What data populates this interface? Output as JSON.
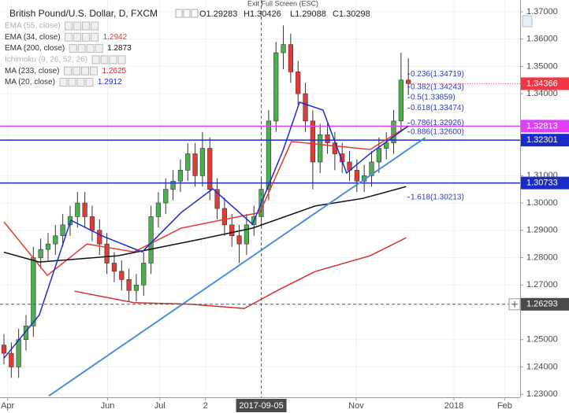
{
  "chart_data": {
    "type": "candlestick",
    "title": "British Pound/U.S. Dollar, D, FXCM",
    "ohlc_labels": [
      "O1.29283",
      "H1.30426",
      "L1.29088",
      "C1.30298"
    ],
    "top_hint": "Exit Full Screen (ESC)",
    "up_color": "#4caf50",
    "down_color": "#e53935",
    "open": [
      1.248,
      1.245,
      1.24,
      1.25,
      1.255,
      1.28,
      1.283,
      1.285,
      1.288,
      1.292,
      1.295,
      1.3,
      1.295,
      1.29,
      1.285,
      1.278,
      1.275,
      1.272,
      1.268,
      1.27,
      1.278,
      1.295,
      1.3,
      1.305,
      1.308,
      1.312,
      1.318,
      1.31,
      1.32,
      1.305,
      1.298,
      1.292,
      1.288,
      1.285,
      1.292,
      1.295,
      1.305,
      1.33,
      1.355,
      1.358,
      1.348,
      1.34,
      1.33,
      1.315,
      1.325,
      1.322,
      1.318,
      1.315,
      1.312,
      1.308,
      1.31,
      1.315,
      1.32,
      1.322,
      1.33,
      1.345
    ],
    "high": [
      1.252,
      1.249,
      1.254,
      1.259,
      1.284,
      1.287,
      1.289,
      1.292,
      1.296,
      1.299,
      1.304,
      1.304,
      1.299,
      1.294,
      1.289,
      1.282,
      1.279,
      1.276,
      1.274,
      1.282,
      1.299,
      1.304,
      1.309,
      1.312,
      1.316,
      1.322,
      1.322,
      1.326,
      1.324,
      1.309,
      1.302,
      1.296,
      1.292,
      1.296,
      1.299,
      1.309,
      1.334,
      1.359,
      1.365,
      1.362,
      1.352,
      1.344,
      1.334,
      1.329,
      1.329,
      1.326,
      1.322,
      1.319,
      1.316,
      1.314,
      1.319,
      1.324,
      1.326,
      1.334,
      1.355,
      1.353
    ],
    "low": [
      1.241,
      1.236,
      1.236,
      1.246,
      1.251,
      1.276,
      1.279,
      1.281,
      1.284,
      1.288,
      1.291,
      1.291,
      1.286,
      1.281,
      1.274,
      1.271,
      1.268,
      1.264,
      1.264,
      1.266,
      1.274,
      1.291,
      1.296,
      1.301,
      1.304,
      1.308,
      1.306,
      1.306,
      1.301,
      1.294,
      1.288,
      1.284,
      1.278,
      1.281,
      1.288,
      1.291,
      1.301,
      1.326,
      1.349,
      1.344,
      1.336,
      1.326,
      1.305,
      1.311,
      1.318,
      1.312,
      1.311,
      1.308,
      1.304,
      1.304,
      1.306,
      1.311,
      1.316,
      1.318,
      1.326,
      1.3395
    ],
    "close": [
      1.245,
      1.24,
      1.25,
      1.255,
      1.28,
      1.283,
      1.285,
      1.288,
      1.292,
      1.295,
      1.3,
      1.295,
      1.29,
      1.285,
      1.278,
      1.275,
      1.272,
      1.268,
      1.27,
      1.278,
      1.295,
      1.3,
      1.305,
      1.308,
      1.312,
      1.318,
      1.31,
      1.32,
      1.305,
      1.298,
      1.292,
      1.288,
      1.285,
      1.292,
      1.295,
      1.305,
      1.33,
      1.355,
      1.358,
      1.348,
      1.34,
      1.33,
      1.315,
      1.325,
      1.322,
      1.318,
      1.315,
      1.312,
      1.308,
      1.31,
      1.315,
      1.32,
      1.322,
      1.33,
      1.345,
      1.3437
    ],
    "series": [
      {
        "name": "EMA (55, close)",
        "visible": false
      },
      {
        "name": "EMA (34, close)",
        "legend_value": 1.2942,
        "color": "#e53935",
        "x": [
          0,
          5.9,
          11.3,
          17.7,
          24.1,
          29.5,
          34.8,
          39.1,
          44.5,
          49.8,
          55
        ],
        "values": [
          1.2931,
          1.2735,
          1.285,
          1.2821,
          1.2908,
          1.2937,
          1.2965,
          1.3225,
          1.321,
          1.3196,
          1.3282
        ]
      },
      {
        "name": "EMA (200, close)",
        "legend_value": 1.2873,
        "color": "#111111",
        "x": [
          0,
          4.8,
          15.5,
          26.3,
          33.8,
          42.3,
          48.8,
          54.7
        ],
        "values": [
          1.282,
          1.2784,
          1.2807,
          1.2865,
          1.2908,
          1.2989,
          1.3017,
          1.306
        ]
      },
      {
        "name": "Ichimoku (9, 26, 52, 26)",
        "visible": false
      },
      {
        "name": "MA (233, close)",
        "legend_value": 1.2625,
        "color": "#d32f2f",
        "x": [
          9.6,
          17.7,
          25.2,
          32.7,
          37,
          42.3,
          49.8,
          54.7
        ],
        "values": [
          1.2677,
          1.2635,
          1.263,
          1.2614,
          1.2677,
          1.2749,
          1.2807,
          1.2873
        ]
      },
      {
        "name": "MA (20, close)",
        "legend_value": 1.2912,
        "color": "#1e2bd6",
        "x": [
          0,
          4.8,
          9.1,
          13.4,
          18.8,
          24.1,
          28.4,
          33.8,
          38,
          40.2,
          43.4,
          46.6,
          49.8,
          55
        ],
        "values": [
          1.2432,
          1.259,
          1.2937,
          1.2879,
          1.2821,
          1.2965,
          1.3052,
          1.2922,
          1.3196,
          1.3369,
          1.334,
          1.311,
          1.3181,
          1.3282
        ]
      }
    ],
    "trendline": {
      "color": "#4a8fd9",
      "x": [
        6.1,
        57.3
      ],
      "values": [
        1.2294,
        1.3239
      ]
    },
    "levels": [
      {
        "value": 1.32813,
        "color": "#e040fb"
      },
      {
        "value": 1.32301,
        "color": "#1a2bc8"
      },
      {
        "value": 1.30733,
        "color": "#1a2bc8"
      }
    ],
    "last_price": {
      "value": 1.34366,
      "color": "#f23645"
    },
    "fib_x": 55.3,
    "fib_color": "#2a3ad0",
    "fib_levels": [
      {
        "value": 1.34719,
        "label": "0.236(1.34719)"
      },
      {
        "value": 1.34243,
        "label": "0.382(1.34243)"
      },
      {
        "value": 1.33859,
        "label": "0.5(1.33859)"
      },
      {
        "value": 1.33474,
        "label": "0.618(1.33474)"
      },
      {
        "value": 1.32926,
        "label": "0.786(1.32926)"
      },
      {
        "value": 1.326,
        "label": "0.886(1.32600)"
      },
      {
        "value": 1.30213,
        "label": "1.618(1.30213)"
      }
    ],
    "crosshair": {
      "x": 35,
      "x_label": "2017-09-05",
      "y": 1.26293
    },
    "xlim": [
      -0.536,
      70.2
    ],
    "xticks": [
      {
        "value": 0.5,
        "label": "Apr"
      },
      {
        "value": 14.1,
        "label": "Jun"
      },
      {
        "value": 21.2,
        "label": "Jul"
      },
      {
        "value": 27.4,
        "label": "2"
      },
      {
        "value": 47.9,
        "label": "Nov"
      },
      {
        "value": 61.2,
        "label": "2018"
      },
      {
        "value": 68.1,
        "label": "Feb"
      }
    ],
    "ylim": [
      1.2289,
      1.3743
    ],
    "yticks": [
      {
        "value": 1.37,
        "label": "1.37000"
      },
      {
        "value": 1.36,
        "label": "1.36000"
      },
      {
        "value": 1.35,
        "label": "1.35000"
      },
      {
        "value": 1.34,
        "label": "1.34000"
      },
      {
        "value": 1.31,
        "label": "1.31000"
      },
      {
        "value": 1.3,
        "label": "1.30000"
      },
      {
        "value": 1.29,
        "label": "1.29000"
      },
      {
        "value": 1.28,
        "label": "1.28000"
      },
      {
        "value": 1.27,
        "label": "1.27000"
      },
      {
        "value": 1.25,
        "label": "1.25000"
      },
      {
        "value": 1.24,
        "label": "1.24000"
      },
      {
        "value": 1.23,
        "label": "1.23000"
      }
    ],
    "grid": true
  }
}
